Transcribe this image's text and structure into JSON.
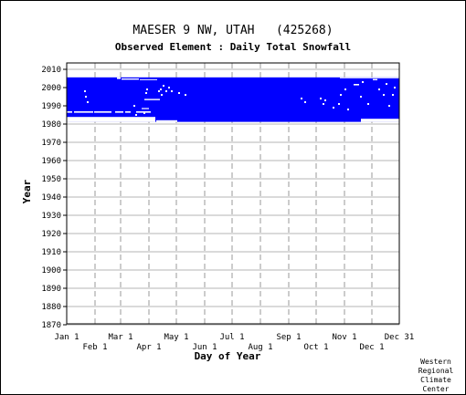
{
  "chart_data": {
    "type": "heatmap",
    "title": "MAESER 9 NW, UTAH   (425268)",
    "subtitle": "Observed Element : Daily Total Snowfall",
    "xlabel": "Day of Year",
    "ylabel": "Year",
    "credit": [
      "Western",
      "Regional",
      "Climate",
      "Center"
    ],
    "x_range": [
      1,
      365
    ],
    "ylim": [
      1870,
      2012
    ],
    "y_ticks": [
      2010,
      2000,
      1990,
      1980,
      1970,
      1960,
      1950,
      1940,
      1930,
      1920,
      1910,
      1900,
      1890,
      1880,
      1870
    ],
    "x_ticks_upper": [
      {
        "label": "Jan 1",
        "day": 1
      },
      {
        "label": "Mar 1",
        "day": 60
      },
      {
        "label": "May 1",
        "day": 121
      },
      {
        "label": "Jul 1",
        "day": 182
      },
      {
        "label": "Sep 1",
        "day": 244
      },
      {
        "label": "Nov 1",
        "day": 305
      },
      {
        "label": "Dec 31",
        "day": 365
      }
    ],
    "x_ticks_lower": [
      {
        "label": "Feb 1",
        "day": 32
      },
      {
        "label": "Apr 1",
        "day": 91
      },
      {
        "label": "Jun 1",
        "day": 152
      },
      {
        "label": "Aug 1",
        "day": 213
      },
      {
        "label": "Oct 1",
        "day": 274
      },
      {
        "label": "Dec 1",
        "day": 335
      }
    ],
    "grid": true,
    "data_color": "#0000ff",
    "observed_period": {
      "start_year": 1981,
      "end_year": 2005
    },
    "observed_block": {
      "day_start": 1,
      "day_end": 365,
      "year_start": 1981.2,
      "year_end": 2005.6
    },
    "missing_segments": [
      {
        "day_start": 1,
        "day_end": 98,
        "year_start": 1981.2,
        "year_end": 1983.9
      },
      {
        "day_start": 99,
        "day_end": 122,
        "year_start": 1981.2,
        "year_end": 1982.1
      },
      {
        "day_start": 323,
        "day_end": 365,
        "year_start": 1981.2,
        "year_end": 1982.9
      },
      {
        "day_start": 1,
        "day_end": 7,
        "year_start": 1986.2,
        "year_end": 1987.0
      },
      {
        "day_start": 9,
        "day_end": 30,
        "year_start": 1986.2,
        "year_end": 1987.0
      },
      {
        "day_start": 31,
        "day_end": 50,
        "year_start": 1986.2,
        "year_end": 1987.0
      },
      {
        "day_start": 54,
        "day_end": 63,
        "year_start": 1986.2,
        "year_end": 1987.0
      },
      {
        "day_start": 65,
        "day_end": 71,
        "year_start": 1986.2,
        "year_end": 1987.0
      },
      {
        "day_start": 77,
        "day_end": 93,
        "year_start": 1986.2,
        "year_end": 1987.0
      },
      {
        "day_start": 83,
        "day_end": 91,
        "year_start": 1988.2,
        "year_end": 1988.8
      },
      {
        "day_start": 86,
        "day_end": 103,
        "year_start": 1993.1,
        "year_end": 1993.8
      },
      {
        "day_start": 315,
        "day_end": 321,
        "year_start": 2001.2,
        "year_end": 2002.0
      },
      {
        "day_start": 56,
        "day_end": 60,
        "year_start": 2004.7,
        "year_end": 2005.6
      },
      {
        "day_start": 61,
        "day_end": 80,
        "year_start": 2004.3,
        "year_end": 2005.0
      },
      {
        "day_start": 81,
        "day_end": 100,
        "year_start": 2004.2,
        "year_end": 2004.6
      },
      {
        "day_start": 300,
        "day_end": 365,
        "year_start": 2005.1,
        "year_end": 2005.6
      },
      {
        "day_start": 336,
        "day_end": 341,
        "year_start": 2004.0,
        "year_end": 2004.7
      }
    ],
    "missing_dots": [
      {
        "day": 21,
        "year": 1998
      },
      {
        "day": 22,
        "year": 1995
      },
      {
        "day": 24,
        "year": 1992
      },
      {
        "day": 75,
        "year": 1990
      },
      {
        "day": 77,
        "year": 1985
      },
      {
        "day": 86,
        "year": 1986
      },
      {
        "day": 88,
        "year": 1997
      },
      {
        "day": 89,
        "year": 1999
      },
      {
        "day": 102,
        "year": 1998
      },
      {
        "day": 104,
        "year": 1999
      },
      {
        "day": 105,
        "year": 1996
      },
      {
        "day": 107,
        "year": 2001
      },
      {
        "day": 110,
        "year": 1998
      },
      {
        "day": 113,
        "year": 2000
      },
      {
        "day": 116,
        "year": 1998
      },
      {
        "day": 124,
        "year": 1997
      },
      {
        "day": 131,
        "year": 1996
      },
      {
        "day": 258,
        "year": 1994
      },
      {
        "day": 262,
        "year": 1992
      },
      {
        "day": 279,
        "year": 1994
      },
      {
        "day": 282,
        "year": 1991
      },
      {
        "day": 284,
        "year": 1993
      },
      {
        "day": 293,
        "year": 1989
      },
      {
        "day": 299,
        "year": 1991
      },
      {
        "day": 301,
        "year": 1996
      },
      {
        "day": 306,
        "year": 1999
      },
      {
        "day": 309,
        "year": 1988
      },
      {
        "day": 323,
        "year": 1995
      },
      {
        "day": 325,
        "year": 2003
      },
      {
        "day": 331,
        "year": 1991
      },
      {
        "day": 343,
        "year": 1999
      },
      {
        "day": 348,
        "year": 1996
      },
      {
        "day": 351,
        "year": 2002
      },
      {
        "day": 354,
        "year": 1990
      },
      {
        "day": 358,
        "year": 1996
      },
      {
        "day": 360,
        "year": 2000
      }
    ]
  }
}
